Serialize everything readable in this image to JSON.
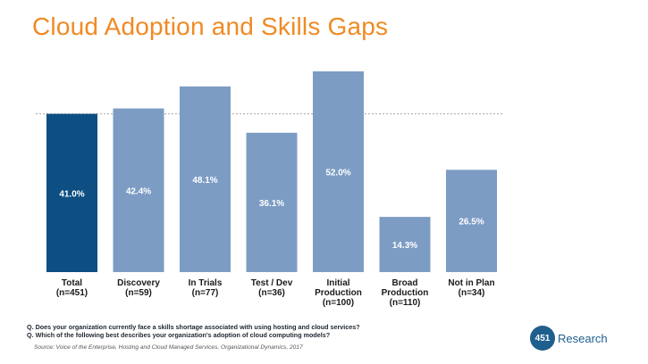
{
  "chart_data": {
    "type": "bar",
    "title": "Cloud Adoption and Skills Gaps",
    "categories": [
      [
        "Total",
        "(n=451)"
      ],
      [
        "Discovery",
        "(n=59)"
      ],
      [
        "In Trials",
        "(n=77)"
      ],
      [
        "Test / Dev",
        "(n=36)"
      ],
      [
        "Initial",
        "Production",
        "(n=100)"
      ],
      [
        "Broad",
        "Production",
        "(n=110)"
      ],
      [
        "Not in Plan",
        "(n=34)"
      ]
    ],
    "values": [
      41.0,
      42.4,
      48.1,
      36.1,
      52.0,
      14.3,
      26.5
    ],
    "value_labels": [
      "41.0%",
      "42.4%",
      "48.1%",
      "36.1%",
      "52.0%",
      "14.3%",
      "26.5%"
    ],
    "highlight_index": 0,
    "reference_line": 41.0,
    "ylim": [
      0,
      52.0
    ],
    "grid": false,
    "colors": {
      "highlight": "#0D4F82",
      "bar": "#7C9CC4",
      "reference_line": "#A8A8A8",
      "value_label": "#ffffff",
      "category_label": "#1a1a1a"
    }
  },
  "footnotes": [
    "Q. Does your organization currently face a skills shortage associated with using hosting and cloud services?",
    "Q. Which of the following best describes your organization's adoption of cloud computing models?"
  ],
  "source": "Source: Voice of the Enterprise, Hosting and Cloud Managed Services, Organizational Dynamics, 2017",
  "logo": {
    "number": "451",
    "text": "Research"
  }
}
